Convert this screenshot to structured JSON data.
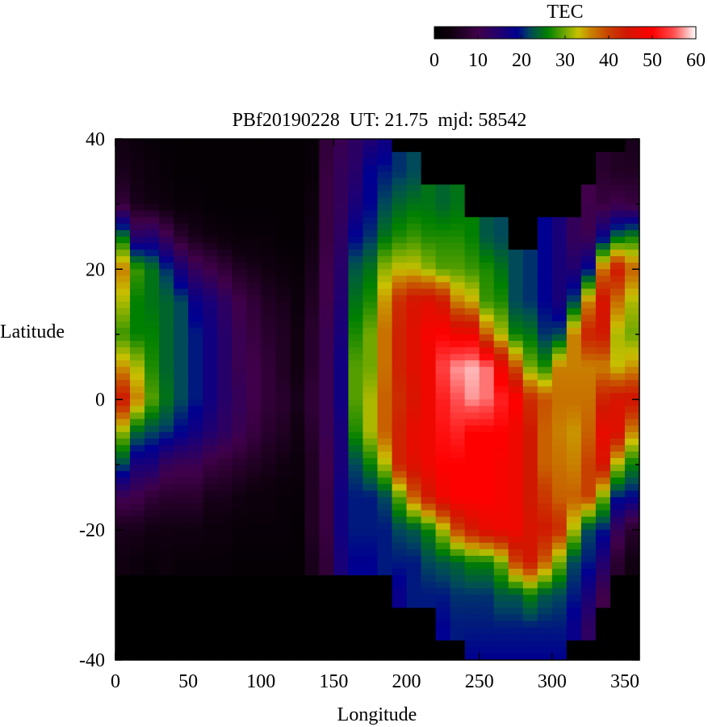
{
  "chart_data": {
    "type": "heatmap",
    "title": "PBf20190228  UT: 21.75  mjd: 58542",
    "xlabel": "Longitude",
    "ylabel": "Latitude",
    "xlim": [
      0,
      360
    ],
    "ylim": [
      -40,
      40
    ],
    "x_ticks": [
      0,
      50,
      100,
      150,
      200,
      250,
      300,
      350
    ],
    "y_ticks": [
      -40,
      -20,
      0,
      20,
      40
    ],
    "lon_bin_width": 10,
    "lat_samples": [
      40,
      35,
      30,
      25,
      20,
      15,
      10,
      5,
      0,
      -5,
      -10,
      -15,
      -20,
      -25,
      -30,
      -35,
      -40
    ],
    "lon_bins_start": [
      0,
      10,
      20,
      30,
      40,
      50,
      60,
      70,
      80,
      90,
      100,
      110,
      120,
      130,
      140,
      150,
      160,
      170,
      180,
      190,
      200,
      210,
      220,
      230,
      240,
      250,
      260,
      270,
      280,
      290,
      300,
      310,
      320,
      330,
      340,
      350
    ],
    "values_by_lon_bin": [
      [
        4,
        5,
        8,
        25,
        36,
        32,
        28,
        35,
        44,
        31,
        22,
        11,
        5,
        4,
        0,
        0,
        0
      ],
      [
        3,
        4,
        5,
        14,
        28,
        26,
        26,
        32,
        36,
        24,
        16,
        10,
        5,
        3,
        0,
        0,
        0
      ],
      [
        2,
        3,
        4,
        15,
        25,
        25,
        26,
        27,
        29,
        22,
        16,
        8,
        4,
        2,
        0,
        0,
        0
      ],
      [
        1,
        2,
        3,
        11,
        21,
        24,
        24,
        24,
        25,
        21,
        12,
        7,
        4,
        3,
        0,
        0,
        0
      ],
      [
        1,
        1,
        2,
        7,
        16,
        22,
        22,
        22,
        22,
        19,
        11,
        7,
        4,
        2,
        0,
        0,
        0
      ],
      [
        1,
        1,
        2,
        5,
        12,
        18,
        20,
        20,
        20,
        17,
        11,
        7,
        4,
        2,
        0,
        0,
        0
      ],
      [
        1,
        1,
        1,
        4,
        10,
        16,
        17,
        17,
        17,
        15,
        9,
        5,
        3,
        2,
        0,
        0,
        0
      ],
      [
        1,
        1,
        1,
        3,
        8,
        13,
        14,
        14,
        14,
        13,
        8,
        5,
        3,
        2,
        0,
        0,
        0
      ],
      [
        1,
        1,
        1,
        2,
        6,
        10,
        11,
        11,
        12,
        11,
        7,
        4,
        2,
        1,
        0,
        0,
        0
      ],
      [
        1,
        1,
        1,
        2,
        5,
        8,
        9,
        10,
        10,
        9,
        6,
        3,
        2,
        1,
        0,
        0,
        0
      ],
      [
        1,
        1,
        1,
        2,
        4,
        6,
        7,
        8,
        8,
        7,
        5,
        3,
        2,
        1,
        0,
        0,
        0
      ],
      [
        1,
        1,
        1,
        1,
        3,
        5,
        6,
        6,
        7,
        6,
        4,
        2,
        2,
        1,
        0,
        0,
        0
      ],
      [
        1,
        1,
        1,
        1,
        2,
        3,
        4,
        4,
        5,
        4,
        3,
        2,
        1,
        1,
        0,
        0,
        0
      ],
      [
        2,
        2,
        3,
        4,
        5,
        6,
        7,
        7,
        8,
        7,
        6,
        6,
        6,
        5,
        0,
        0,
        0
      ],
      [
        8,
        9,
        9,
        9,
        10,
        10,
        11,
        11,
        11,
        11,
        10,
        9,
        9,
        8,
        0,
        0,
        0
      ],
      [
        11,
        12,
        12,
        13,
        14,
        15,
        16,
        17,
        17,
        16,
        16,
        17,
        17,
        16,
        0,
        0,
        0
      ],
      [
        13,
        14,
        16,
        19,
        23,
        25,
        27,
        29,
        29,
        27,
        22,
        20,
        20,
        19,
        0,
        0,
        0
      ],
      [
        15,
        19,
        19,
        21,
        25,
        27,
        30,
        30,
        32,
        32,
        26,
        20,
        20,
        19,
        0,
        0,
        0
      ],
      [
        17,
        20,
        22,
        25,
        31,
        35,
        37,
        37,
        38,
        38,
        32,
        22,
        20,
        20,
        0,
        0,
        0
      ],
      [
        0,
        21,
        24,
        27,
        33,
        42,
        43,
        43,
        42,
        43,
        43,
        29,
        22,
        20,
        18,
        0,
        0
      ],
      [
        0,
        22,
        25,
        28,
        33,
        45,
        46,
        46,
        45,
        47,
        46,
        38,
        23,
        20,
        20,
        0,
        0
      ],
      [
        0,
        0,
        25,
        27,
        31,
        46,
        49,
        48,
        48,
        48,
        48,
        44,
        26,
        22,
        20,
        0,
        0
      ],
      [
        0,
        0,
        24,
        27,
        29,
        44,
        50,
        54,
        52,
        51,
        50,
        48,
        32,
        23,
        20,
        19,
        0
      ],
      [
        0,
        0,
        25,
        27,
        29,
        36,
        48,
        57,
        55,
        52,
        50,
        50,
        40,
        24,
        21,
        20,
        0
      ],
      [
        0,
        0,
        0,
        26,
        28,
        34,
        48,
        58,
        57,
        50,
        50,
        50,
        44,
        26,
        21,
        20,
        19
      ],
      [
        0,
        0,
        0,
        23,
        27,
        28,
        38,
        56,
        56,
        50,
        50,
        50,
        47,
        26,
        21,
        20,
        19
      ],
      [
        0,
        0,
        0,
        22,
        25,
        27,
        32,
        48,
        52,
        50,
        49,
        49,
        48,
        30,
        23,
        20,
        19
      ],
      [
        0,
        0,
        0,
        0,
        22,
        22,
        26,
        39,
        50,
        48,
        48,
        48,
        48,
        40,
        23,
        20,
        19
      ],
      [
        0,
        0,
        0,
        0,
        21,
        21,
        25,
        30,
        42,
        44,
        44,
        44,
        45,
        44,
        26,
        20,
        19
      ],
      [
        0,
        0,
        0,
        19,
        19,
        19,
        21,
        27,
        39,
        38,
        38,
        41,
        44,
        38,
        23,
        20,
        19
      ],
      [
        0,
        0,
        0,
        16,
        16,
        16,
        22,
        36,
        37,
        36,
        37,
        38,
        42,
        30,
        22,
        20,
        19
      ],
      [
        0,
        0,
        0,
        12,
        15,
        22,
        36,
        36,
        37,
        35,
        36,
        38,
        32,
        22,
        20,
        18,
        0
      ],
      [
        0,
        0,
        10,
        11,
        19,
        36,
        43,
        36,
        37,
        38,
        40,
        40,
        22,
        20,
        16,
        13,
        0
      ],
      [
        0,
        7,
        9,
        18,
        37,
        45,
        44,
        36,
        43,
        47,
        45,
        30,
        20,
        15,
        10,
        0,
        0
      ],
      [
        0,
        6,
        10,
        24,
        44,
        37,
        32,
        33,
        45,
        46,
        32,
        20,
        12,
        7,
        0,
        0,
        0
      ],
      [
        5,
        6,
        9,
        26,
        38,
        32,
        30,
        35,
        45,
        36,
        26,
        19,
        7,
        4,
        0,
        0,
        0
      ]
    ],
    "colorbar": {
      "label": "TEC",
      "range": [
        0,
        60
      ],
      "ticks": [
        0,
        10,
        20,
        30,
        40,
        50,
        60
      ],
      "stops": [
        [
          0,
          "#000000"
        ],
        [
          4,
          "#100010"
        ],
        [
          10,
          "#40004a"
        ],
        [
          15,
          "#200070"
        ],
        [
          19,
          "#000090"
        ],
        [
          22,
          "#004a5a"
        ],
        [
          26,
          "#008000"
        ],
        [
          30,
          "#70a800"
        ],
        [
          33,
          "#c8c000"
        ],
        [
          36,
          "#c88000"
        ],
        [
          40,
          "#c84000"
        ],
        [
          44,
          "#d01800"
        ],
        [
          50,
          "#ff0000"
        ],
        [
          55,
          "#ff5050"
        ],
        [
          60,
          "#ffffff"
        ]
      ]
    },
    "grid": false
  }
}
